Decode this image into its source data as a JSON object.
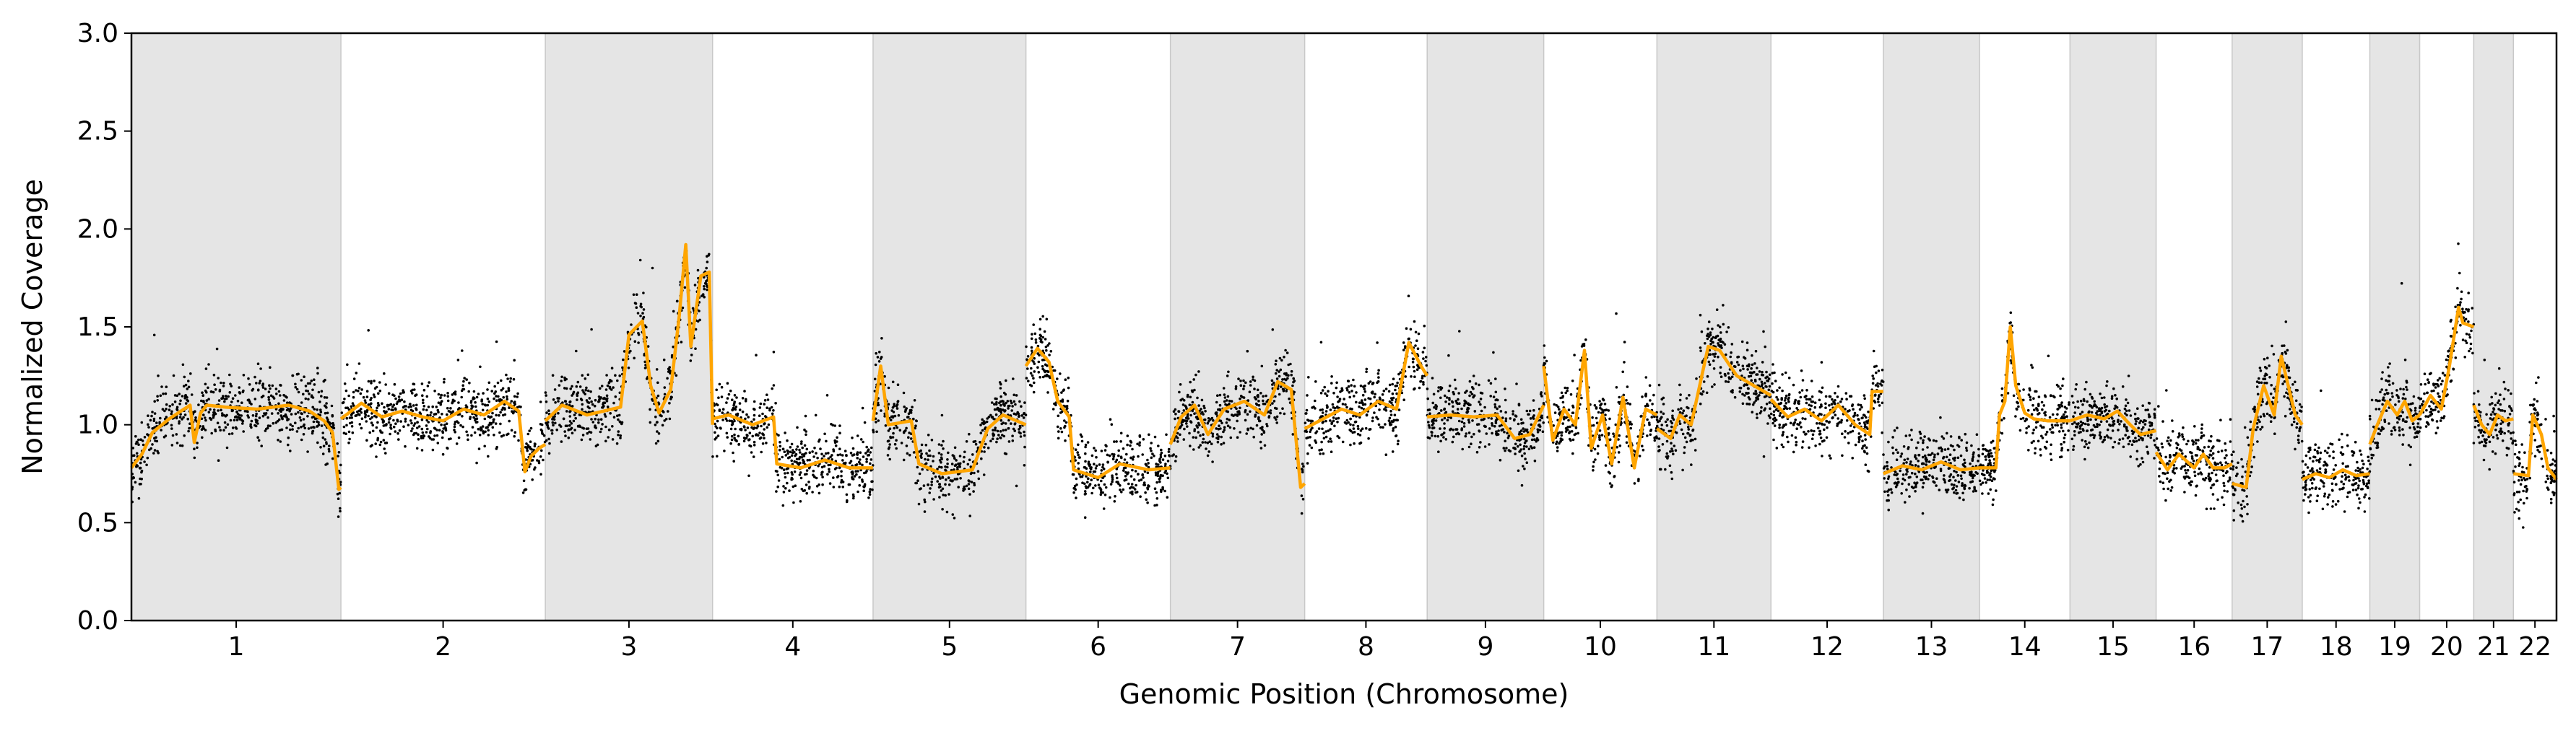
{
  "chart_data": {
    "type": "scatter",
    "title": "",
    "xlabel": "Genomic Position (Chromosome)",
    "ylabel": "Normalized Coverage",
    "ylim": [
      0.0,
      3.0
    ],
    "yticks": [
      "0.0",
      "0.5",
      "1.0",
      "1.5",
      "2.0",
      "2.5",
      "3.0"
    ],
    "grid": false,
    "legend": "none",
    "colors": {
      "points": "#000000",
      "segments": "#FFA500",
      "band": "#E5E5E5",
      "band_edge": "#C8C8C8"
    },
    "chromosomes": [
      {
        "name": "1",
        "length": 248,
        "shaded": true,
        "baseline": 1.0,
        "segments": [
          [
            0,
            0.78
          ],
          [
            0.05,
            0.85
          ],
          [
            0.1,
            0.96
          ],
          [
            0.18,
            1.03
          ],
          [
            0.28,
            1.1
          ],
          [
            0.3,
            0.91
          ],
          [
            0.33,
            1.06
          ],
          [
            0.36,
            1.1
          ],
          [
            0.45,
            1.09
          ],
          [
            0.6,
            1.08
          ],
          [
            0.75,
            1.1
          ],
          [
            0.85,
            1.07
          ],
          [
            0.92,
            1.02
          ],
          [
            0.96,
            0.96
          ],
          [
            0.99,
            0.67
          ],
          [
            1,
            0.68
          ]
        ]
      },
      {
        "name": "2",
        "length": 242,
        "shaded": false,
        "baseline": 1.0,
        "segments": [
          [
            0,
            1.03
          ],
          [
            0.1,
            1.11
          ],
          [
            0.2,
            1.04
          ],
          [
            0.3,
            1.07
          ],
          [
            0.4,
            1.04
          ],
          [
            0.5,
            1.02
          ],
          [
            0.6,
            1.08
          ],
          [
            0.7,
            1.05
          ],
          [
            0.8,
            1.12
          ],
          [
            0.87,
            1.07
          ],
          [
            0.9,
            0.76
          ],
          [
            0.93,
            0.84
          ],
          [
            0.97,
            0.88
          ],
          [
            1,
            0.9
          ]
        ]
      },
      {
        "name": "3",
        "length": 198,
        "shaded": true,
        "baseline": 1.05,
        "segments": [
          [
            0,
            1.02
          ],
          [
            0.1,
            1.1
          ],
          [
            0.25,
            1.05
          ],
          [
            0.45,
            1.09
          ],
          [
            0.5,
            1.46
          ],
          [
            0.58,
            1.53
          ],
          [
            0.63,
            1.2
          ],
          [
            0.68,
            1.06
          ],
          [
            0.75,
            1.18
          ],
          [
            0.8,
            1.55
          ],
          [
            0.84,
            1.92
          ],
          [
            0.87,
            1.4
          ],
          [
            0.93,
            1.76
          ],
          [
            0.98,
            1.78
          ],
          [
            1,
            1.0
          ]
        ]
      },
      {
        "name": "4",
        "length": 190,
        "shaded": false,
        "baseline": 0.82,
        "segments": [
          [
            0,
            1.03
          ],
          [
            0.1,
            1.05
          ],
          [
            0.25,
            1.0
          ],
          [
            0.38,
            1.04
          ],
          [
            0.4,
            0.8
          ],
          [
            0.55,
            0.78
          ],
          [
            0.7,
            0.82
          ],
          [
            0.85,
            0.78
          ],
          [
            1,
            0.78
          ]
        ]
      },
      {
        "name": "5",
        "length": 181,
        "shaded": true,
        "baseline": 0.95,
        "segments": [
          [
            0,
            1.02
          ],
          [
            0.05,
            1.3
          ],
          [
            0.1,
            1.0
          ],
          [
            0.25,
            1.02
          ],
          [
            0.3,
            0.8
          ],
          [
            0.45,
            0.75
          ],
          [
            0.65,
            0.77
          ],
          [
            0.75,
            0.98
          ],
          [
            0.85,
            1.05
          ],
          [
            1,
            1.0
          ]
        ]
      },
      {
        "name": "6",
        "length": 171,
        "shaded": false,
        "baseline": 0.95,
        "segments": [
          [
            0,
            1.3
          ],
          [
            0.08,
            1.39
          ],
          [
            0.16,
            1.32
          ],
          [
            0.22,
            1.12
          ],
          [
            0.3,
            1.04
          ],
          [
            0.33,
            0.77
          ],
          [
            0.5,
            0.73
          ],
          [
            0.65,
            0.8
          ],
          [
            0.85,
            0.77
          ],
          [
            1,
            0.78
          ]
        ]
      },
      {
        "name": "7",
        "length": 159,
        "shaded": true,
        "baseline": 1.08,
        "segments": [
          [
            0,
            0.9
          ],
          [
            0.08,
            1.04
          ],
          [
            0.18,
            1.1
          ],
          [
            0.28,
            0.95
          ],
          [
            0.4,
            1.08
          ],
          [
            0.55,
            1.12
          ],
          [
            0.7,
            1.05
          ],
          [
            0.8,
            1.22
          ],
          [
            0.9,
            1.18
          ],
          [
            0.97,
            0.68
          ],
          [
            1,
            0.7
          ]
        ]
      },
      {
        "name": "8",
        "length": 145,
        "shaded": false,
        "baseline": 1.05,
        "segments": [
          [
            0,
            0.98
          ],
          [
            0.15,
            1.03
          ],
          [
            0.3,
            1.08
          ],
          [
            0.45,
            1.05
          ],
          [
            0.6,
            1.12
          ],
          [
            0.75,
            1.08
          ],
          [
            0.85,
            1.42
          ],
          [
            0.95,
            1.3
          ],
          [
            1,
            1.25
          ]
        ]
      },
      {
        "name": "9",
        "length": 138,
        "shaded": true,
        "baseline": 1.05,
        "segments": [
          [
            0,
            1.04
          ],
          [
            0.2,
            1.05
          ],
          [
            0.4,
            1.04
          ],
          [
            0.6,
            1.05
          ],
          [
            0.75,
            0.93
          ],
          [
            0.88,
            0.95
          ],
          [
            1,
            1.1
          ]
        ]
      },
      {
        "name": "10",
        "length": 134,
        "shaded": false,
        "baseline": 1.0,
        "segments": [
          [
            0,
            1.3
          ],
          [
            0.08,
            0.92
          ],
          [
            0.18,
            1.08
          ],
          [
            0.28,
            1.0
          ],
          [
            0.36,
            1.38
          ],
          [
            0.42,
            0.88
          ],
          [
            0.52,
            1.05
          ],
          [
            0.6,
            0.8
          ],
          [
            0.7,
            1.14
          ],
          [
            0.8,
            0.78
          ],
          [
            0.9,
            1.08
          ],
          [
            1,
            1.05
          ]
        ]
      },
      {
        "name": "11",
        "length": 135,
        "shaded": true,
        "baseline": 1.15,
        "segments": [
          [
            0,
            0.98
          ],
          [
            0.12,
            0.93
          ],
          [
            0.2,
            1.05
          ],
          [
            0.3,
            1.0
          ],
          [
            0.45,
            1.4
          ],
          [
            0.55,
            1.38
          ],
          [
            0.7,
            1.25
          ],
          [
            0.85,
            1.2
          ],
          [
            1,
            1.15
          ]
        ]
      },
      {
        "name": "12",
        "length": 133,
        "shaded": false,
        "baseline": 1.03,
        "segments": [
          [
            0,
            1.13
          ],
          [
            0.15,
            1.04
          ],
          [
            0.3,
            1.08
          ],
          [
            0.45,
            1.02
          ],
          [
            0.6,
            1.1
          ],
          [
            0.75,
            1.0
          ],
          [
            0.88,
            0.95
          ],
          [
            0.9,
            1.17
          ],
          [
            1,
            1.17
          ]
        ]
      },
      {
        "name": "13",
        "length": 114,
        "shaded": true,
        "baseline": 0.78,
        "segments": [
          [
            0,
            0.75
          ],
          [
            0.2,
            0.79
          ],
          [
            0.4,
            0.77
          ],
          [
            0.6,
            0.81
          ],
          [
            0.8,
            0.77
          ],
          [
            1,
            0.78
          ]
        ]
      },
      {
        "name": "14",
        "length": 107,
        "shaded": false,
        "baseline": 1.05,
        "segments": [
          [
            0,
            0.78
          ],
          [
            0.18,
            0.78
          ],
          [
            0.22,
            1.05
          ],
          [
            0.28,
            1.12
          ],
          [
            0.34,
            1.5
          ],
          [
            0.4,
            1.2
          ],
          [
            0.5,
            1.06
          ],
          [
            0.6,
            1.03
          ],
          [
            0.75,
            1.02
          ],
          [
            1,
            1.02
          ]
        ]
      },
      {
        "name": "15",
        "length": 102,
        "shaded": true,
        "baseline": 1.03,
        "segments": [
          [
            0,
            1.02
          ],
          [
            0.2,
            1.05
          ],
          [
            0.4,
            1.03
          ],
          [
            0.55,
            1.07
          ],
          [
            0.7,
            1.0
          ],
          [
            0.82,
            0.95
          ],
          [
            1,
            0.97
          ]
        ]
      },
      {
        "name": "16",
        "length": 90,
        "shaded": false,
        "baseline": 0.9,
        "segments": [
          [
            0,
            0.86
          ],
          [
            0.15,
            0.77
          ],
          [
            0.3,
            0.85
          ],
          [
            0.5,
            0.78
          ],
          [
            0.62,
            0.85
          ],
          [
            0.75,
            0.78
          ],
          [
            0.9,
            0.78
          ],
          [
            1,
            0.8
          ]
        ]
      },
      {
        "name": "17",
        "length": 83,
        "shaded": true,
        "baseline": 1.05,
        "segments": [
          [
            0,
            0.7
          ],
          [
            0.2,
            0.68
          ],
          [
            0.3,
            0.98
          ],
          [
            0.45,
            1.2
          ],
          [
            0.6,
            1.05
          ],
          [
            0.7,
            1.35
          ],
          [
            0.8,
            1.2
          ],
          [
            0.9,
            1.05
          ],
          [
            1,
            1.0
          ]
        ]
      },
      {
        "name": "18",
        "length": 80,
        "shaded": false,
        "baseline": 0.75,
        "segments": [
          [
            0,
            0.72
          ],
          [
            0.2,
            0.75
          ],
          [
            0.4,
            0.73
          ],
          [
            0.6,
            0.77
          ],
          [
            0.8,
            0.74
          ],
          [
            1,
            0.75
          ]
        ]
      },
      {
        "name": "19",
        "length": 59,
        "shaded": true,
        "baseline": 1.05,
        "segments": [
          [
            0,
            0.9
          ],
          [
            0.15,
            1.0
          ],
          [
            0.35,
            1.12
          ],
          [
            0.55,
            1.05
          ],
          [
            0.7,
            1.12
          ],
          [
            0.85,
            1.02
          ],
          [
            1,
            1.05
          ]
        ]
      },
      {
        "name": "20",
        "length": 64,
        "shaded": false,
        "baseline": 1.15,
        "segments": [
          [
            0,
            1.05
          ],
          [
            0.2,
            1.15
          ],
          [
            0.4,
            1.08
          ],
          [
            0.55,
            1.3
          ],
          [
            0.72,
            1.6
          ],
          [
            0.8,
            1.52
          ],
          [
            1,
            1.5
          ]
        ]
      },
      {
        "name": "21",
        "length": 47,
        "shaded": true,
        "baseline": 1.0,
        "segments": [
          [
            0,
            1.1
          ],
          [
            0.2,
            1.0
          ],
          [
            0.4,
            0.95
          ],
          [
            0.6,
            1.05
          ],
          [
            0.8,
            1.02
          ],
          [
            1,
            1.03
          ]
        ]
      },
      {
        "name": "22",
        "length": 51,
        "shaded": false,
        "baseline": 0.8,
        "segments": [
          [
            0,
            0.75
          ],
          [
            0.35,
            0.74
          ],
          [
            0.45,
            1.05
          ],
          [
            0.65,
            0.95
          ],
          [
            0.8,
            0.78
          ],
          [
            1,
            0.72
          ]
        ]
      }
    ]
  }
}
